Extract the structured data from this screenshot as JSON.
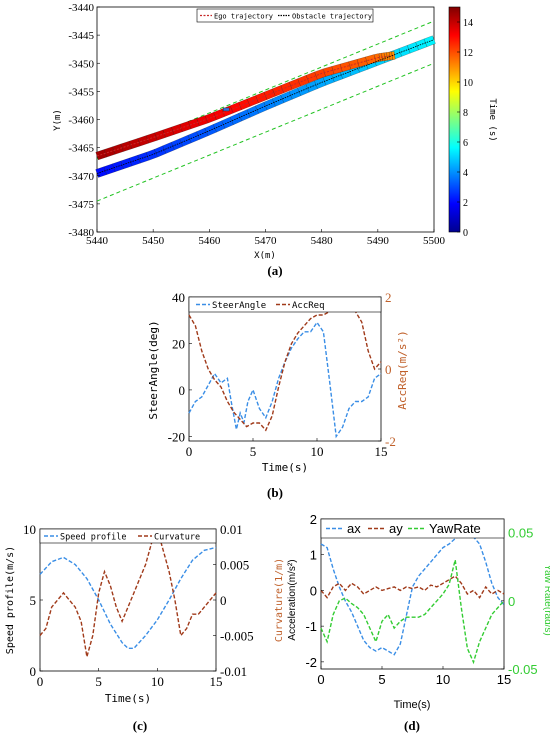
{
  "chart_data": [
    {
      "id": "a",
      "type": "scatter",
      "caption": "(a)",
      "xlabel": "X(m)",
      "ylabel": "Y(m)",
      "xlim": [
        5440,
        5500
      ],
      "ylim": [
        -3480,
        -3440
      ],
      "xticks": [
        "5440",
        "5450",
        "5460",
        "5470",
        "5480",
        "5490",
        "5500"
      ],
      "yticks": [
        "-3440",
        "-3445",
        "-3450",
        "-3455",
        "-3460",
        "-3465",
        "-3470",
        "-3475",
        "-3480"
      ],
      "legend": [
        "Ego trajectory",
        "Obstacle trajectory"
      ],
      "colorbar": {
        "label": "Time (s)",
        "min": 0,
        "max": 15,
        "ticks": [
          "0",
          "2",
          "4",
          "6",
          "8",
          "10",
          "12",
          "14"
        ]
      },
      "ego_path": [
        [
          5440,
          -3466.5
        ],
        [
          5450,
          -3463.2
        ],
        [
          5460,
          -3459.8
        ],
        [
          5470,
          -3455.8
        ],
        [
          5480,
          -3451.8
        ],
        [
          5490,
          -3449.0
        ],
        [
          5493,
          -3448.6
        ]
      ],
      "obstacle_path": [
        [
          5440,
          -3469.6
        ],
        [
          5450,
          -3466.2
        ],
        [
          5460,
          -3462.0
        ],
        [
          5470,
          -3457.6
        ],
        [
          5480,
          -3453.4
        ],
        [
          5490,
          -3449.6
        ],
        [
          5500,
          -3445.8
        ]
      ],
      "boundaries": [
        [
          [
            5440,
            -3467.0
          ],
          [
            5500,
            -3442.5
          ]
        ],
        [
          [
            5440,
            -3474.5
          ],
          [
            5500,
            -3450.0
          ]
        ]
      ],
      "colors": {
        "ego_line": "#c62828",
        "obstacle_line": "#000000",
        "boundary": "#22c322"
      }
    },
    {
      "id": "b",
      "type": "line",
      "caption": "(b)",
      "xlabel": "Time(s)",
      "ylabel": "SteerAngle(deg)",
      "ylabel_right": "AccReq(m/s²)",
      "xlim": [
        0,
        15
      ],
      "ylim": [
        -22,
        40
      ],
      "ylim_right": [
        -2,
        2
      ],
      "xticks": [
        "0",
        "5",
        "10",
        "15"
      ],
      "yticks": [
        "40",
        "20",
        "0",
        "-20"
      ],
      "yticks_right": [
        "2",
        "0",
        "-2"
      ],
      "series": [
        {
          "name": "SteerAngle",
          "axis": "left",
          "color": "#3a8ee6",
          "x": [
            0,
            0.5,
            1,
            1.5,
            2,
            2.5,
            3,
            3.3,
            3.7,
            4,
            4.3,
            4.6,
            5,
            5.5,
            6,
            6.5,
            7,
            7.5,
            8,
            8.5,
            9,
            9.5,
            10,
            10.5,
            11,
            11.5,
            12,
            12.5,
            13,
            13.5,
            14,
            14.5,
            15
          ],
          "y": [
            -10,
            -5,
            -3,
            2,
            7,
            3,
            5,
            -5,
            -17,
            -10,
            -14,
            -5,
            0,
            -8,
            -12,
            -5,
            5,
            12,
            18,
            22,
            25,
            25,
            29,
            25,
            3,
            -20,
            -16,
            -8,
            -5,
            -5,
            -3,
            5,
            7
          ]
        },
        {
          "name": "AccReq",
          "axis": "right",
          "color": "#a03a1a",
          "x": [
            0,
            0.5,
            1,
            1.5,
            2,
            2.5,
            3,
            3.5,
            4,
            4.5,
            5,
            5.5,
            6,
            6.5,
            7,
            7.5,
            8,
            8.5,
            9,
            9.5,
            10,
            10.5,
            11,
            11.5,
            12,
            12.5,
            13,
            13.5,
            14,
            14.5,
            15
          ],
          "y": [
            1.5,
            1.2,
            0.5,
            0.0,
            -0.3,
            -0.5,
            -0.9,
            -1.2,
            -1.4,
            -1.6,
            -1.5,
            -1.5,
            -1.7,
            -1.3,
            -0.5,
            0.2,
            0.7,
            1.0,
            1.2,
            1.4,
            1.5,
            1.5,
            1.6,
            1.65,
            1.65,
            1.65,
            1.6,
            1.3,
            0.5,
            0.0,
            0.2
          ]
        }
      ]
    },
    {
      "id": "c",
      "type": "line",
      "caption": "(c)",
      "xlabel": "Time(s)",
      "ylabel": "Speed profile(m/s)",
      "ylabel_right": "Curvature(1/m)",
      "xlim": [
        0,
        15
      ],
      "ylim": [
        0,
        10
      ],
      "ylim_right": [
        -0.01,
        0.01
      ],
      "xticks": [
        "0",
        "5",
        "10",
        "15"
      ],
      "yticks": [
        "10",
        "5",
        "0"
      ],
      "yticks_right": [
        "0.01",
        "0.005",
        "0",
        "-0.005",
        "-0.01"
      ],
      "series": [
        {
          "name": "Speed profile",
          "axis": "left",
          "color": "#3a8ee6",
          "x": [
            0,
            1,
            2,
            3,
            4,
            5,
            6,
            7,
            7.5,
            8,
            9,
            10,
            11,
            12,
            13,
            14,
            15
          ],
          "y": [
            6.8,
            7.7,
            8.0,
            7.5,
            6.5,
            5.0,
            3.3,
            2.0,
            1.6,
            1.6,
            2.5,
            3.6,
            5.0,
            6.5,
            7.8,
            8.5,
            8.7
          ]
        },
        {
          "name": "Curvature",
          "axis": "right",
          "color": "#a03a1a",
          "x": [
            0,
            0.5,
            1,
            1.5,
            2,
            2.5,
            3,
            3.5,
            4,
            4.5,
            5,
            5.5,
            6,
            6.5,
            7,
            7.5,
            8,
            8.5,
            9,
            9.5,
            10,
            10.5,
            11,
            11.5,
            12,
            12.5,
            13,
            13.5,
            14,
            14.5,
            15
          ],
          "y": [
            -0.005,
            -0.004,
            -0.001,
            0.0,
            0.001,
            0.0,
            -0.001,
            -0.003,
            -0.008,
            -0.005,
            0.001,
            0.004,
            0.002,
            -0.001,
            -0.003,
            -0.001,
            0.001,
            0.003,
            0.005,
            0.008,
            0.01,
            0.007,
            0.004,
            0.0,
            -0.005,
            -0.004,
            -0.002,
            -0.002,
            -0.001,
            0.0,
            0.001
          ]
        }
      ]
    },
    {
      "id": "d",
      "type": "line",
      "caption": "(d)",
      "xlabel": "Time(s)",
      "ylabel": "Acceleration(m/s²)",
      "ylabel_right": "Yaw Rate(rad/s)",
      "xlim": [
        0,
        15
      ],
      "ylim": [
        -2.2,
        2
      ],
      "ylim_right": [
        -0.05,
        0.06
      ],
      "xticks": [
        "0",
        "5",
        "10",
        "15"
      ],
      "yticks": [
        "2",
        "1",
        "0",
        "-1",
        "-2"
      ],
      "yticks_right": [
        "0.05",
        "0",
        "-0.05"
      ],
      "series": [
        {
          "name": "ax",
          "axis": "left",
          "color": "#3a8ee6",
          "x": [
            0,
            0.5,
            1,
            1.5,
            2,
            2.5,
            3,
            3.5,
            4,
            4.5,
            5,
            5.5,
            6,
            6.5,
            7,
            7.5,
            8,
            8.5,
            9,
            9.5,
            10,
            10.5,
            11,
            11.5,
            12,
            12.5,
            13,
            13.5,
            14,
            14.5,
            15
          ],
          "y": [
            1.3,
            1.2,
            0.6,
            0.1,
            -0.3,
            -0.6,
            -1.0,
            -1.4,
            -1.6,
            -1.7,
            -1.6,
            -1.7,
            -1.8,
            -1.5,
            -0.7,
            0.1,
            0.4,
            0.6,
            0.8,
            1.0,
            1.2,
            1.3,
            1.45,
            1.55,
            1.6,
            1.5,
            1.3,
            0.8,
            0.2,
            -0.2,
            -0.4
          ]
        },
        {
          "name": "ay",
          "axis": "left",
          "color": "#a03a1a",
          "x": [
            0,
            0.5,
            1,
            1.5,
            2,
            2.5,
            3,
            3.5,
            4,
            4.5,
            5,
            5.5,
            6,
            6.5,
            7,
            7.5,
            8,
            8.5,
            9,
            9.5,
            10,
            10.5,
            11,
            11.5,
            12,
            12.5,
            13,
            13.5,
            14,
            14.5,
            15
          ],
          "y": [
            0.0,
            -0.2,
            0.1,
            0.2,
            0.0,
            0.2,
            0.1,
            -0.1,
            0.0,
            0.1,
            0.0,
            0.05,
            0.1,
            0.0,
            0.1,
            0.05,
            0.1,
            0.0,
            0.15,
            0.1,
            0.2,
            0.3,
            0.4,
            0.2,
            -0.1,
            0.0,
            -0.2,
            0.1,
            -0.1,
            0.0,
            -0.1
          ]
        },
        {
          "name": "YawRate",
          "axis": "right",
          "color": "#33cc33",
          "x": [
            0,
            0.5,
            1,
            1.5,
            2,
            2.5,
            3,
            3.5,
            4,
            4.5,
            5,
            5.5,
            6,
            6.5,
            7,
            7.5,
            8,
            8.5,
            9,
            9.5,
            10,
            10.5,
            11,
            11.5,
            12,
            12.5,
            13,
            13.5,
            14,
            14.5,
            15
          ],
          "y": [
            -0.02,
            -0.03,
            -0.01,
            0.0,
            0.002,
            -0.002,
            -0.005,
            -0.01,
            -0.02,
            -0.03,
            -0.015,
            -0.01,
            -0.02,
            -0.015,
            -0.012,
            -0.012,
            -0.012,
            -0.01,
            -0.005,
            0.0,
            0.005,
            0.012,
            0.03,
            -0.005,
            -0.035,
            -0.045,
            -0.03,
            -0.02,
            -0.01,
            -0.005,
            0.0
          ]
        }
      ]
    }
  ]
}
